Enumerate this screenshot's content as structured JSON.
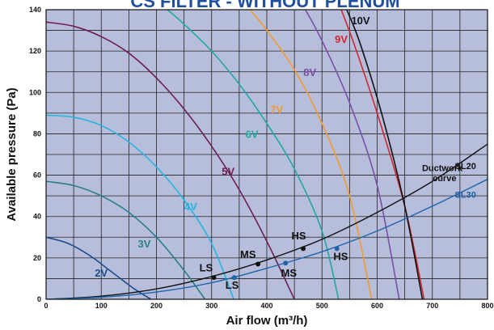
{
  "chart_data": {
    "type": "line",
    "title": "CS FILTER - WITHOUT PLENUM",
    "xlabel": "Air flow (m³/h)",
    "ylabel": "Available pressure (Pa)",
    "xlim": [
      0,
      800
    ],
    "ylim": [
      0,
      140
    ],
    "x_ticks": [
      0,
      100,
      200,
      300,
      400,
      500,
      600,
      700,
      800
    ],
    "y_ticks": [
      0,
      20,
      40,
      60,
      80,
      100,
      120,
      140
    ],
    "x_minor_step": 50,
    "y_minor_step": 10,
    "grid": true,
    "plot_background": "#b7bedc",
    "series": [
      {
        "name": "2V",
        "color": "#1e4d8c",
        "label_at": [
          100,
          11
        ],
        "label_color": "#1e4d8c",
        "x": [
          0,
          40,
          80,
          120,
          160,
          190
        ],
        "y": [
          30,
          27,
          21,
          13,
          5,
          0
        ]
      },
      {
        "name": "3V",
        "color": "#2a7f86",
        "label_at": [
          178,
          25
        ],
        "label_color": "#2a7f86",
        "x": [
          0,
          50,
          100,
          150,
          200,
          250,
          288
        ],
        "y": [
          57,
          55,
          50,
          42,
          30,
          14,
          0
        ]
      },
      {
        "name": "4V",
        "color": "#27b4e0",
        "label_at": [
          262,
          43
        ],
        "label_color": "#27b4e0",
        "x": [
          0,
          50,
          100,
          150,
          200,
          250,
          300,
          340
        ],
        "y": [
          89,
          88,
          84,
          76,
          64,
          48,
          27,
          0
        ]
      },
      {
        "name": "5V",
        "color": "#6e1e52",
        "label_at": [
          330,
          60
        ],
        "label_color": "#6e1e52",
        "x": [
          0,
          50,
          100,
          150,
          200,
          250,
          300,
          350,
          400,
          450
        ],
        "y": [
          134,
          132,
          127,
          119,
          107,
          92,
          74,
          53,
          28,
          0
        ]
      },
      {
        "name": "6V",
        "color": "#22a7a0",
        "label_at": [
          373,
          78
        ],
        "label_color": "#22a7a0",
        "x": [
          220,
          250,
          300,
          350,
          400,
          450,
          500,
          530
        ],
        "y": [
          140,
          133,
          120,
          104,
          85,
          63,
          33,
          0
        ]
      },
      {
        "name": "7V",
        "color": "#f29b2c",
        "label_at": [
          418,
          90
        ],
        "label_color": "#f29b2c",
        "x": [
          370,
          400,
          450,
          500,
          550,
          590
        ],
        "y": [
          140,
          130,
          111,
          85,
          50,
          0
        ]
      },
      {
        "name": "8V",
        "color": "#7a4fa8",
        "label_at": [
          478,
          108
        ],
        "label_color": "#7a4fa8",
        "x": [
          470,
          500,
          550,
          600,
          640
        ],
        "y": [
          140,
          125,
          95,
          55,
          0
        ]
      },
      {
        "name": "9V",
        "color": "#d1262e",
        "label_at": [
          535,
          124
        ],
        "label_color": "#d1262e",
        "x": [
          535,
          560,
          600,
          650,
          685
        ],
        "y": [
          140,
          122,
          90,
          45,
          0
        ]
      },
      {
        "name": "10V",
        "color": "#111111",
        "label_at": [
          570,
          133
        ],
        "label_color": "#111111",
        "x": [
          545,
          570,
          610,
          650,
          682
        ],
        "y": [
          140,
          123,
          88,
          45,
          0
        ]
      }
    ],
    "system_curves": [
      {
        "name": "SL20",
        "color": "#111111",
        "label_at": [
          760,
          63
        ],
        "label_color": "#111111",
        "x": [
          0,
          100,
          200,
          300,
          400,
          500,
          600,
          700,
          800
        ],
        "y": [
          0,
          1.5,
          5,
          11,
          19,
          29,
          42,
          57,
          75
        ]
      },
      {
        "name": "SL30",
        "color": "#1f63a8",
        "label_at": [
          760,
          49
        ],
        "label_color": "#1f63a8",
        "x": [
          0,
          100,
          200,
          300,
          400,
          500,
          600,
          700,
          800
        ],
        "y": [
          0,
          1,
          3.5,
          8,
          15,
          23,
          33,
          45,
          58
        ]
      }
    ],
    "points": [
      {
        "label": "LS",
        "x": 304,
        "y": 10.5,
        "label_at": [
          290,
          13.5
        ]
      },
      {
        "label": "MS",
        "x": 384,
        "y": 17,
        "label_at": [
          366,
          20
        ]
      },
      {
        "name": "HS",
        "label": "HS",
        "x": 466,
        "y": 24.5,
        "label_at": [
          458,
          29
        ]
      },
      {
        "label": "LS",
        "x": 341,
        "y": 10.5,
        "label_at": [
          337,
          5
        ]
      },
      {
        "label": "MS",
        "x": 434,
        "y": 17.5,
        "label_at": [
          440,
          11
        ]
      },
      {
        "label": "HS",
        "x": 527,
        "y": 24.5,
        "label_at": [
          534,
          19
        ]
      }
    ],
    "annotations": [
      {
        "text": "Ductwork",
        "at": [
          718,
          62
        ]
      },
      {
        "text": "curve",
        "at": [
          722,
          57
        ]
      }
    ]
  }
}
